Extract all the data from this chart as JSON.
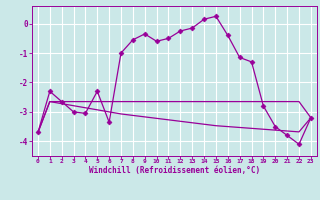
{
  "xlabel": "Windchill (Refroidissement éolien,°C)",
  "background_color": "#cbe8e8",
  "grid_color": "#ffffff",
  "line_color": "#990099",
  "x_values": [
    0,
    1,
    2,
    3,
    4,
    5,
    6,
    7,
    8,
    9,
    10,
    11,
    12,
    13,
    14,
    15,
    16,
    17,
    18,
    19,
    20,
    21,
    22,
    23
  ],
  "main_line": [
    -3.7,
    -2.3,
    -2.65,
    -3.0,
    -3.05,
    -2.3,
    -3.35,
    -1.0,
    -0.55,
    -0.35,
    -0.6,
    -0.5,
    -0.25,
    -0.15,
    0.15,
    0.25,
    -0.4,
    -1.15,
    -1.3,
    -2.8,
    -3.5,
    -3.8,
    -4.1,
    -3.2
  ],
  "line2": [
    -3.7,
    -2.65,
    -2.65,
    -2.65,
    -2.65,
    -2.65,
    -2.65,
    -2.65,
    -2.65,
    -2.65,
    -2.65,
    -2.65,
    -2.65,
    -2.65,
    -2.65,
    -2.65,
    -2.65,
    -2.65,
    -2.65,
    -2.65,
    -2.65,
    -2.65,
    -2.65,
    -3.2
  ],
  "line3": [
    -3.7,
    -2.65,
    -2.72,
    -2.79,
    -2.86,
    -2.93,
    -3.0,
    -3.07,
    -3.12,
    -3.17,
    -3.22,
    -3.27,
    -3.32,
    -3.37,
    -3.42,
    -3.47,
    -3.5,
    -3.53,
    -3.56,
    -3.59,
    -3.62,
    -3.65,
    -3.68,
    -3.2
  ],
  "xlim": [
    -0.5,
    23.5
  ],
  "ylim": [
    -4.5,
    0.6
  ],
  "yticks": [
    0,
    -1,
    -2,
    -3,
    -4
  ],
  "xticks": [
    0,
    1,
    2,
    3,
    4,
    5,
    6,
    7,
    8,
    9,
    10,
    11,
    12,
    13,
    14,
    15,
    16,
    17,
    18,
    19,
    20,
    21,
    22,
    23
  ]
}
